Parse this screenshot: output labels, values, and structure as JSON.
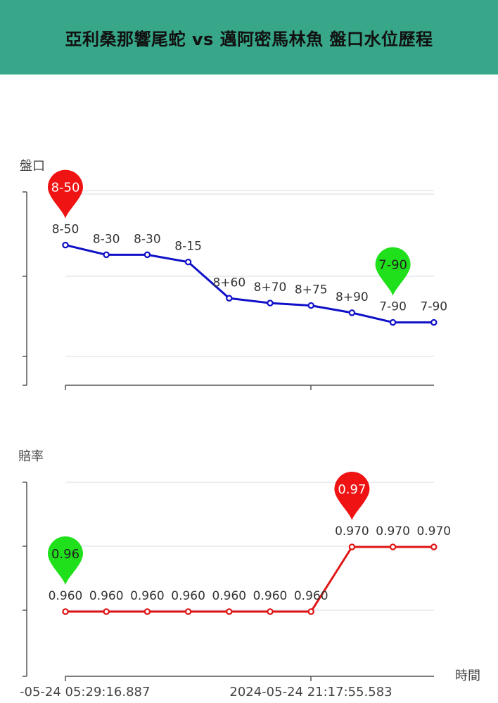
{
  "header": {
    "title": "亞利桑那響尾蛇 vs 邁阿密馬林魚 盤口水位歷程"
  },
  "chart_data": [
    {
      "type": "line",
      "ylabel": "盤口",
      "color": "#1010c8",
      "labels": [
        "8-50",
        "8-30",
        "8-30",
        "8-15",
        "8+60",
        "8+70",
        "8+75",
        "8+90",
        "7-90",
        "7-90"
      ],
      "values": [
        -50,
        -30,
        -30,
        -15,
        60,
        70,
        75,
        90,
        110,
        110
      ],
      "ylim": [
        -160,
        240
      ],
      "max_pin": {
        "index": 0,
        "text": "8-50",
        "color": "#ef1313"
      },
      "min_pin": {
        "index": 8,
        "text": "7-90",
        "color": "#1fe01a"
      }
    },
    {
      "type": "line",
      "ylabel": "賠率",
      "xlabel": "時間",
      "color": "#e01515",
      "labels": [
        "0.960",
        "0.960",
        "0.960",
        "0.960",
        "0.960",
        "0.960",
        "0.960",
        "0.970",
        "0.970",
        "0.970"
      ],
      "values": [
        0.96,
        0.96,
        0.96,
        0.96,
        0.96,
        0.96,
        0.96,
        0.97,
        0.97,
        0.97
      ],
      "ylim": [
        0.95,
        0.98
      ],
      "x_ticks": [
        "-05-24 05:29:16.887",
        "2024-05-24 21:17:55.583"
      ],
      "max_pin": {
        "index": 7,
        "text": "0.97",
        "color": "#ef1313"
      },
      "min_pin": {
        "index": 0,
        "text": "0.96",
        "color": "#1fe01a"
      }
    }
  ]
}
